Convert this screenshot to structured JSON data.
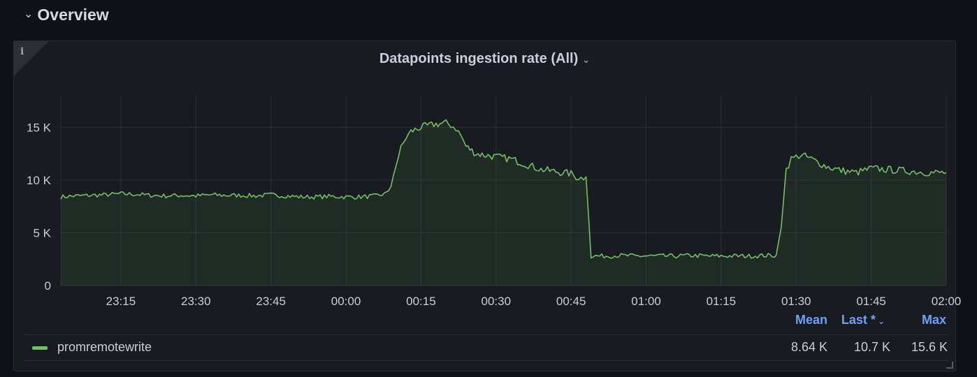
{
  "row": {
    "title": "Overview",
    "chevron": "chevron-down-icon"
  },
  "panel": {
    "title": "Datapoints ingestion rate (All)",
    "title_caret": "chevron-down-icon",
    "info_icon": "info-icon"
  },
  "legend": {
    "headers": {
      "mean": "Mean",
      "last": "Last *",
      "max": "Max"
    },
    "series": [
      {
        "name": "promremotewrite",
        "mean": "8.64 K",
        "last": "10.7 K",
        "max": "15.6 K"
      }
    ]
  },
  "colors": {
    "series": "#73bf69",
    "grid": "#2b2e35",
    "legend_header": "#6e9fff"
  },
  "chart_data": {
    "type": "area",
    "title": "",
    "xlabel": "",
    "ylabel": "",
    "ylim": [
      0,
      18000
    ],
    "y_ticks": [
      0,
      5000,
      10000,
      15000
    ],
    "y_tick_labels": [
      "0",
      "5 K",
      "10 K",
      "15 K"
    ],
    "x_ticks": [
      "23:15",
      "23:30",
      "23:45",
      "00:00",
      "00:15",
      "00:30",
      "00:45",
      "01:00",
      "01:15",
      "01:30",
      "01:45",
      "02:00"
    ],
    "x_range": [
      "23:03",
      "02:00"
    ],
    "grid": true,
    "legend_placement": "bottom",
    "series": [
      {
        "name": "promremotewrite",
        "x": [
          "23:03",
          "23:06",
          "23:09",
          "23:12",
          "23:15",
          "23:18",
          "23:21",
          "23:24",
          "23:27",
          "23:30",
          "23:33",
          "23:36",
          "23:39",
          "23:42",
          "23:45",
          "23:48",
          "23:51",
          "23:54",
          "23:57",
          "00:00",
          "00:03",
          "00:06",
          "00:08",
          "00:09",
          "00:10",
          "00:11",
          "00:12",
          "00:13",
          "00:15",
          "00:18",
          "00:20",
          "00:21",
          "00:22",
          "00:23",
          "00:24",
          "00:26",
          "00:30",
          "00:33",
          "00:36",
          "00:39",
          "00:42",
          "00:45",
          "00:46",
          "00:47",
          "00:48",
          "00:49",
          "00:52",
          "00:55",
          "00:58",
          "01:00",
          "01:03",
          "01:06",
          "01:09",
          "01:12",
          "01:15",
          "01:18",
          "01:21",
          "01:24",
          "01:26",
          "01:27",
          "01:28",
          "01:29",
          "01:30",
          "01:31",
          "01:33",
          "01:36",
          "01:39",
          "01:42",
          "01:45",
          "01:48",
          "01:51",
          "01:54",
          "01:57",
          "02:00"
        ],
        "values": [
          8400,
          8500,
          8550,
          8600,
          8700,
          8650,
          8550,
          8500,
          8550,
          8500,
          8600,
          8550,
          8550,
          8500,
          8600,
          8500,
          8400,
          8400,
          8450,
          8400,
          8400,
          8500,
          8700,
          9400,
          11500,
          13000,
          14000,
          14600,
          15000,
          15300,
          15400,
          15200,
          14900,
          14200,
          13200,
          12500,
          12200,
          12000,
          11500,
          11000,
          10800,
          10600,
          10300,
          10200,
          10300,
          2800,
          2800,
          2850,
          2800,
          2800,
          2800,
          2800,
          2850,
          2800,
          2800,
          2800,
          2800,
          2850,
          2850,
          5500,
          11000,
          12000,
          12200,
          12400,
          12000,
          11300,
          10900,
          10700,
          11100,
          11000,
          10900,
          10800,
          10700,
          10700
        ]
      }
    ]
  }
}
